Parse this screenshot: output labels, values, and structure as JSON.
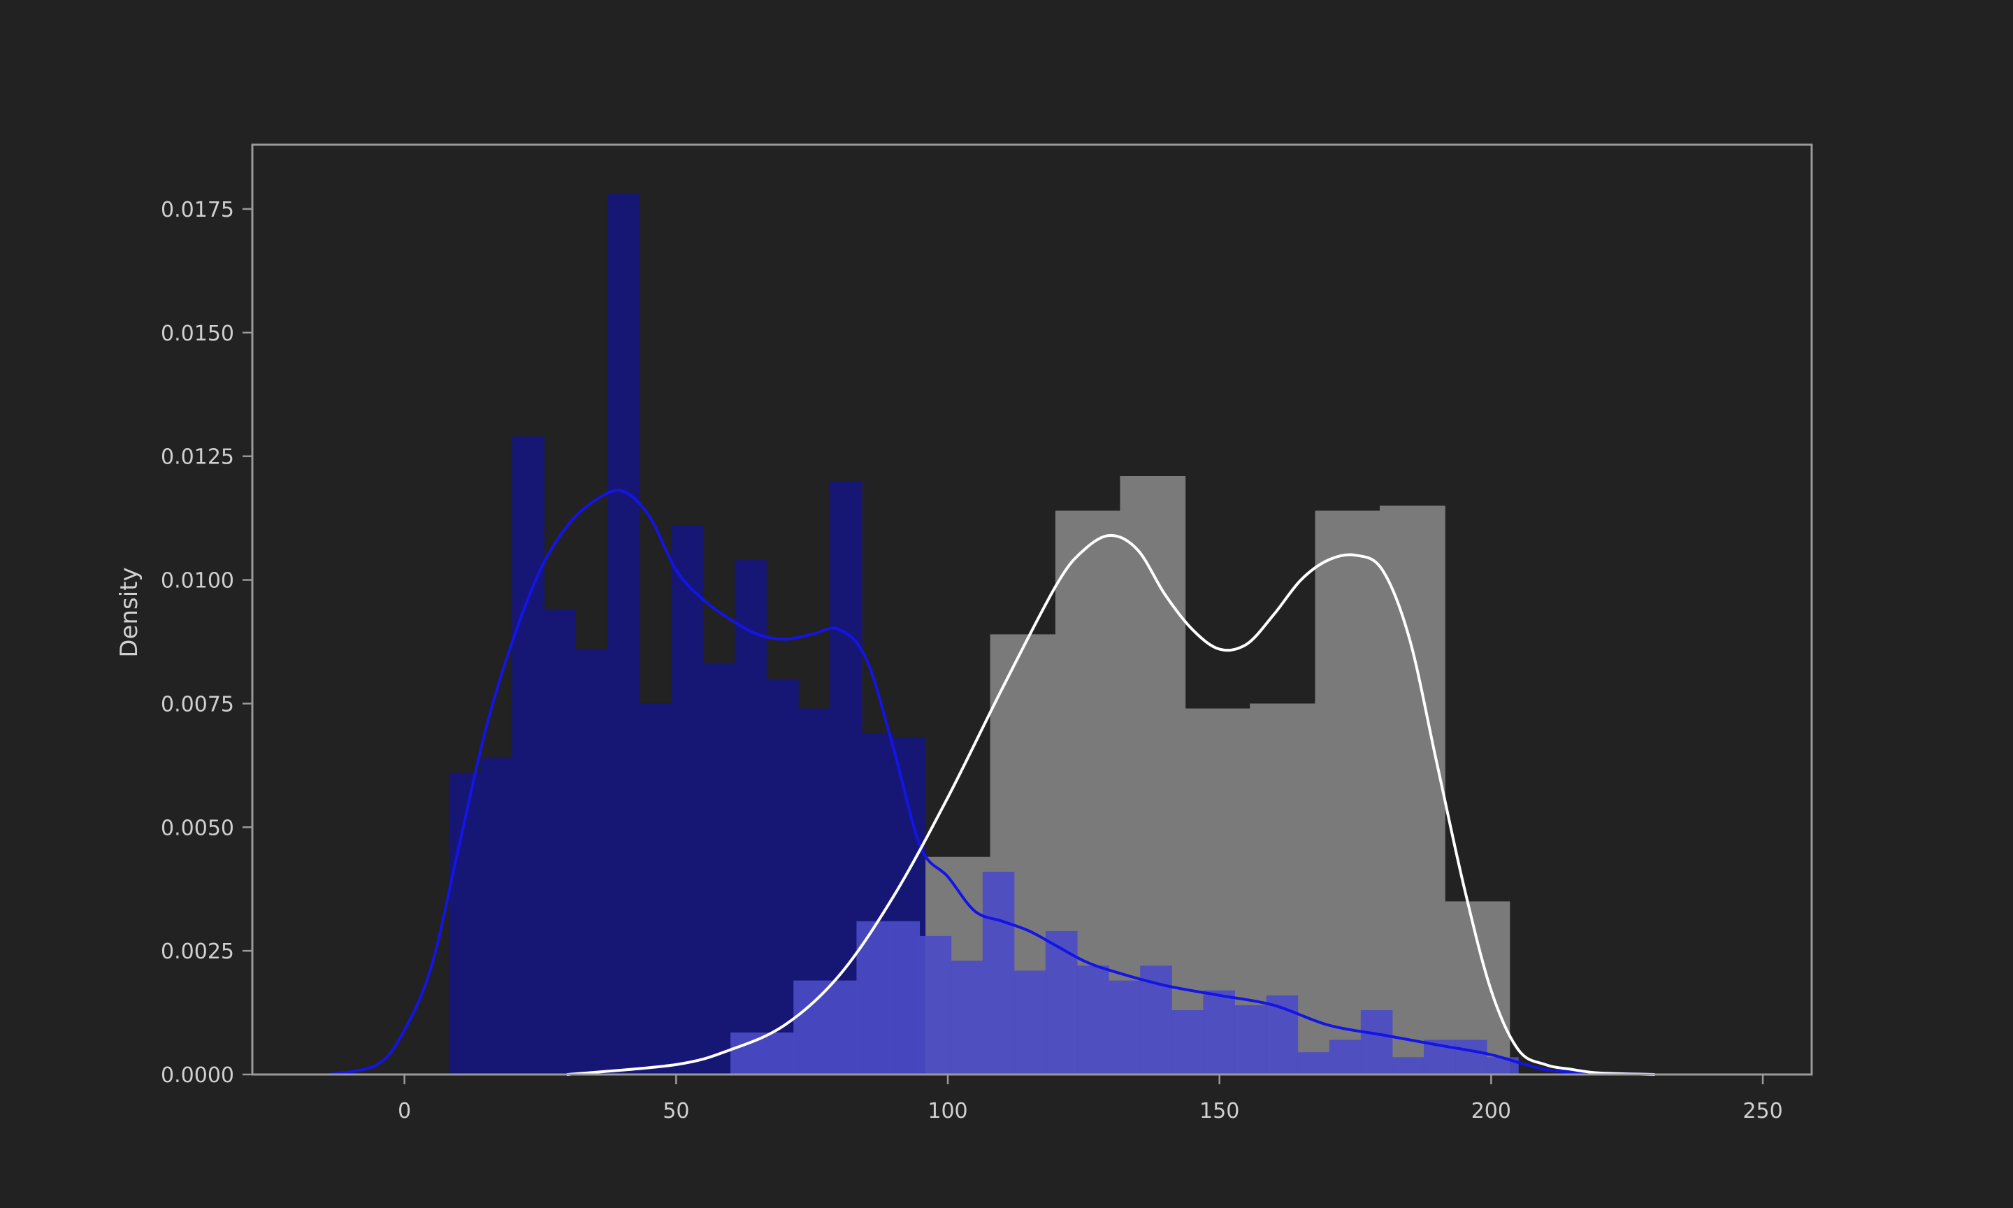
{
  "chart_data": {
    "type": "histogram",
    "title": "",
    "xlabel": "",
    "ylabel": "Density",
    "xlim": [
      -28,
      259
    ],
    "ylim": [
      0,
      0.0188
    ],
    "xticks": [
      0,
      50,
      100,
      150,
      200,
      250
    ],
    "yticks": [
      0,
      0.0025,
      0.005,
      0.0075,
      0.01,
      0.0125,
      0.015,
      0.0175
    ],
    "ytick_labels": [
      "0.0000",
      "0.0025",
      "0.0050",
      "0.0075",
      "0.0100",
      "0.0125",
      "0.0150",
      "0.0175"
    ],
    "grid": false,
    "legend": "none",
    "background": "#222222",
    "series": [
      {
        "color": "#161675",
        "opacity": 1,
        "bin_edges": [
          8.2,
          14.0,
          19.8,
          25.7,
          31.5,
          37.4,
          43.2,
          49.1,
          54.9,
          60.8,
          66.6,
          72.5,
          78.3,
          84.2,
          90.0,
          95.9
        ],
        "densities": [
          0.0061,
          0.0064,
          0.0129,
          0.0094,
          0.0086,
          0.0178,
          0.0075,
          0.0111,
          0.0083,
          0.0104,
          0.008,
          0.0074,
          0.012,
          0.0069,
          0.0068
        ]
      },
      {
        "color": "#7a7a7a",
        "opacity": 1,
        "bin_edges": [
          95.9,
          107.8,
          119.8,
          131.7,
          143.7,
          155.6,
          167.6,
          179.5,
          191.5,
          203.4
        ],
        "densities": [
          0.0044,
          0.0089,
          0.0114,
          0.0121,
          0.0074,
          0.0075,
          0.0114,
          0.0115,
          0.0035
        ]
      },
      {
        "color": "#4b4bc4",
        "opacity": 0.92,
        "bin_edges": [
          60.0,
          65.8,
          71.6,
          77.4,
          83.2,
          89.0,
          94.8,
          100.6,
          106.4,
          112.2,
          118.0,
          123.8,
          129.6,
          135.4,
          141.2,
          147.0,
          152.8,
          158.6,
          164.4,
          170.2,
          176.0,
          181.8,
          187.6,
          193.4,
          199.2,
          205.0
        ],
        "densities": [
          0.00085,
          0.00085,
          0.0019,
          0.0019,
          0.0031,
          0.0031,
          0.0028,
          0.0023,
          0.0041,
          0.0021,
          0.0029,
          0.0022,
          0.0019,
          0.0022,
          0.0013,
          0.0017,
          0.0014,
          0.0016,
          0.00045,
          0.0007,
          0.0013,
          0.00035,
          0.0007,
          0.0007,
          0.00035
        ]
      }
    ],
    "kde_lines": [
      {
        "color": "#1414e6",
        "x": [
          -14,
          -5,
          0,
          5,
          10,
          15,
          20,
          25,
          30,
          35,
          40,
          45,
          50,
          55,
          60,
          65,
          70,
          75,
          80,
          85,
          90,
          95,
          100,
          105,
          110,
          115,
          120,
          125,
          130,
          140,
          150,
          160,
          170,
          180,
          190,
          200,
          210,
          220,
          230
        ],
        "y": [
          0,
          0.0002,
          0.0009,
          0.0022,
          0.0046,
          0.007,
          0.0088,
          0.0102,
          0.0111,
          0.0116,
          0.0118,
          0.0113,
          0.0102,
          0.0096,
          0.0092,
          0.0089,
          0.0088,
          0.0089,
          0.009,
          0.0084,
          0.0066,
          0.0046,
          0.004,
          0.0033,
          0.0031,
          0.0029,
          0.0026,
          0.0023,
          0.0021,
          0.0018,
          0.0016,
          0.0014,
          0.001,
          0.0008,
          0.0006,
          0.0004,
          0.0001,
          3e-05,
          0
        ]
      },
      {
        "color": "#ffffff",
        "x": [
          30,
          50,
          60,
          70,
          80,
          90,
          100,
          110,
          120,
          125,
          130,
          135,
          140,
          145,
          150,
          155,
          160,
          165,
          170,
          175,
          180,
          185,
          190,
          195,
          200,
          205,
          210,
          215,
          220,
          230
        ],
        "y": [
          0,
          0.0002,
          0.0005,
          0.001,
          0.002,
          0.0036,
          0.0056,
          0.0078,
          0.0099,
          0.0106,
          0.0109,
          0.0106,
          0.0097,
          0.009,
          0.0086,
          0.0087,
          0.0093,
          0.01,
          0.0104,
          0.0105,
          0.0102,
          0.0088,
          0.0063,
          0.0038,
          0.0017,
          0.0005,
          0.0002,
          0.0001,
          3e-05,
          0
        ]
      }
    ]
  }
}
